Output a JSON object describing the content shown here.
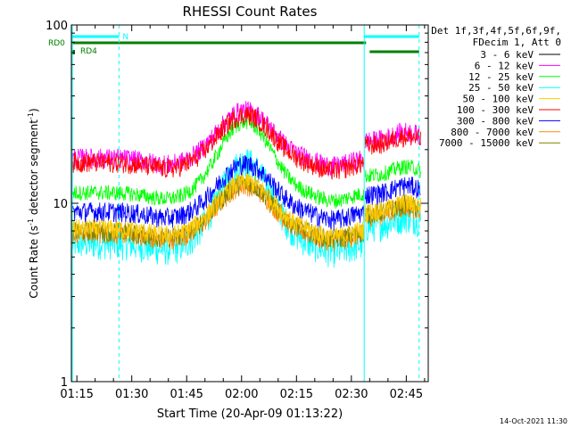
{
  "chart_data": {
    "type": "line",
    "title": "RHESSI Count Rates",
    "xlabel": "Start Time (20-Apr-09 01:13:22)",
    "ylabel_prefix": "Count Rate (s",
    "ylabel_suffix": " detector segment",
    "ylabel_exp": "-1",
    "ylabel_close": ")",
    "yscale": "log",
    "ylim": [
      1,
      100
    ],
    "xlim_minutes_from_0115": [
      -1.5,
      96
    ],
    "x_ticks": [
      "01:15",
      "01:30",
      "01:45",
      "02:00",
      "02:15",
      "02:30",
      "02:45"
    ],
    "x_tick_minutes": [
      0,
      15,
      30,
      45,
      60,
      75,
      90
    ],
    "y_ticks": [
      "1",
      "10",
      "100"
    ],
    "y_tick_values": [
      1,
      10,
      100
    ],
    "legend_header": [
      "Det 1f,3f,4f,5f,6f,9f,",
      "FDecim 1, Att 0"
    ],
    "series": [
      {
        "name": "3 - 6 keV",
        "color": "#000000",
        "level": null
      },
      {
        "name": "6 - 12 keV",
        "color": "#ff00ff",
        "level": 18
      },
      {
        "name": "12 - 25 keV",
        "color": "#00ff00",
        "level": 11.5
      },
      {
        "name": "25 - 50 keV",
        "color": "#00ffff",
        "level": 6.0
      },
      {
        "name": "50 - 100 keV",
        "color": "#ffcc00",
        "level": 7.2
      },
      {
        "name": "100 - 300 keV",
        "color": "#ff0000",
        "level": 17
      },
      {
        "name": "300 - 800 keV",
        "color": "#0000ff",
        "level": 9.0
      },
      {
        "name": "800 - 7000 keV",
        "color": "#ff8800",
        "level": 6.8
      },
      {
        "name": "7000 - 15000 keV",
        "color": "#808000",
        "level": 7.0
      }
    ],
    "profile": {
      "peak_minute": 46,
      "peak_factor": 1.85,
      "trough_minute_1": 25,
      "trough_minute_2": 70,
      "gap_start_minute": 78.5,
      "gap_end_minute": 93.5
    },
    "state_bars": {
      "night_label": "N",
      "rd0_label": "RD0",
      "rd4_label": "RD4",
      "night_color": "#00ffff",
      "rd_color": "#008000"
    },
    "timestamp": "14-Oct-2021 11:30"
  }
}
